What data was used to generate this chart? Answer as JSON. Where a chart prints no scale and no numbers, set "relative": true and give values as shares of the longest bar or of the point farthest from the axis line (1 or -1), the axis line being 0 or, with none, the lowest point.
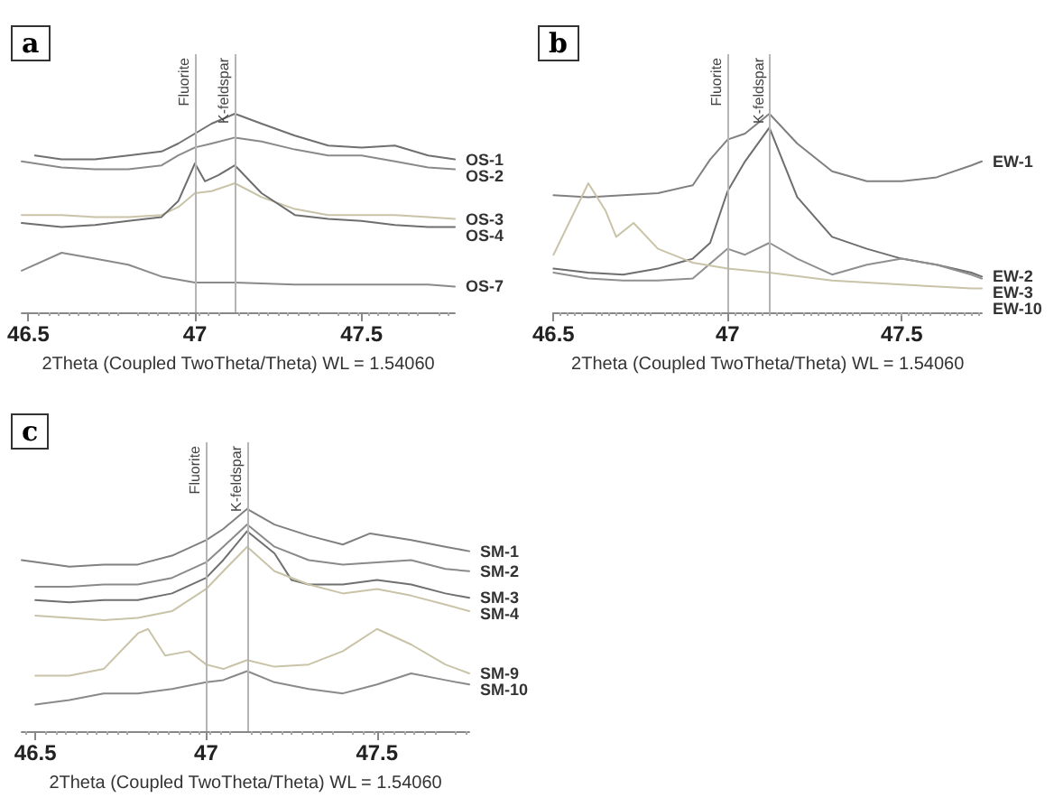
{
  "chart_data": [
    {
      "type": "line",
      "relative": true,
      "xlabel": "2Theta (Coupled TwoTheta/Theta) WL = 1.54060",
      "annotations": [
        "a"
      ],
      "xlim": [
        46.48,
        47.78
      ],
      "xticks": [
        46.5,
        47,
        47.5
      ],
      "legend": false,
      "grid": false,
      "marker": "none",
      "ref_lines": [
        {
          "axis": "x",
          "value": 47.0,
          "label": "Fluorite",
          "color": "#b5b5b5"
        },
        {
          "axis": "x",
          "value": 47.12,
          "label": "K-feldspar",
          "color": "#b5b5b5"
        }
      ],
      "series": [
        {
          "name": "OS-1",
          "color": "#707070",
          "x": [
            46.52,
            46.6,
            46.7,
            46.8,
            46.9,
            46.95,
            47.0,
            47.05,
            47.12,
            47.2,
            47.3,
            47.4,
            47.5,
            47.6,
            47.7,
            47.78
          ],
          "values": [
            0.79,
            0.77,
            0.77,
            0.79,
            0.81,
            0.85,
            0.9,
            0.95,
            1,
            0.95,
            0.89,
            0.84,
            0.83,
            0.84,
            0.79,
            0.77
          ]
        },
        {
          "name": "OS-2",
          "color": "#8a8a8a",
          "x": [
            46.48,
            46.6,
            46.7,
            46.8,
            46.9,
            46.95,
            47.0,
            47.05,
            47.12,
            47.2,
            47.3,
            47.4,
            47.5,
            47.6,
            47.7,
            47.78
          ],
          "values": [
            0.76,
            0.73,
            0.72,
            0.72,
            0.74,
            0.79,
            0.83,
            0.85,
            0.88,
            0.86,
            0.82,
            0.79,
            0.79,
            0.76,
            0.73,
            0.72
          ]
        },
        {
          "name": "OS-3",
          "color": "#c9c3a8",
          "x": [
            46.48,
            46.6,
            46.7,
            46.8,
            46.9,
            46.95,
            47.0,
            47.05,
            47.12,
            47.2,
            47.3,
            47.4,
            47.5,
            47.6,
            47.7,
            47.78
          ],
          "values": [
            0.49,
            0.49,
            0.48,
            0.48,
            0.49,
            0.53,
            0.6,
            0.61,
            0.65,
            0.58,
            0.52,
            0.49,
            0.49,
            0.49,
            0.48,
            0.47
          ]
        },
        {
          "name": "OS-4",
          "color": "#6e6e6e",
          "x": [
            46.48,
            46.6,
            46.7,
            46.8,
            46.9,
            46.95,
            47.0,
            47.03,
            47.07,
            47.12,
            47.2,
            47.3,
            47.4,
            47.5,
            47.6,
            47.7,
            47.78
          ],
          "values": [
            0.45,
            0.43,
            0.44,
            0.46,
            0.48,
            0.56,
            0.75,
            0.66,
            0.69,
            0.74,
            0.6,
            0.49,
            0.47,
            0.46,
            0.44,
            0.43,
            0.43
          ]
        },
        {
          "name": "OS-7",
          "color": "#8a8a8a",
          "x": [
            46.48,
            46.6,
            46.7,
            46.8,
            46.9,
            47.0,
            47.12,
            47.3,
            47.5,
            47.7,
            47.78
          ],
          "values": [
            0.21,
            0.3,
            0.27,
            0.24,
            0.18,
            0.15,
            0.15,
            0.14,
            0.14,
            0.14,
            0.13
          ]
        }
      ]
    },
    {
      "type": "line",
      "relative": true,
      "xlabel": "2Theta (Coupled TwoTheta/Theta) WL = 1.54060",
      "annotations": [
        "b"
      ],
      "xlim": [
        46.5,
        47.73
      ],
      "xticks": [
        46.5,
        47,
        47.5
      ],
      "legend": false,
      "grid": false,
      "marker": "none",
      "ref_lines": [
        {
          "axis": "x",
          "value": 47.0,
          "label": "Fluorite",
          "color": "#b5b5b5"
        },
        {
          "axis": "x",
          "value": 47.12,
          "label": "K-feldspar",
          "color": "#b5b5b5"
        }
      ],
      "series": [
        {
          "name": "EW-1",
          "color": "#808080",
          "x": [
            46.5,
            46.6,
            46.7,
            46.8,
            46.9,
            46.95,
            47.0,
            47.05,
            47.12,
            47.2,
            47.3,
            47.4,
            47.5,
            47.6,
            47.7,
            47.73
          ],
          "values": [
            0.59,
            0.58,
            0.59,
            0.6,
            0.64,
            0.77,
            0.87,
            0.9,
            1,
            0.85,
            0.71,
            0.66,
            0.66,
            0.68,
            0.74,
            0.76
          ]
        },
        {
          "name": "EW-2",
          "color": "#6e6e6e",
          "x": [
            46.5,
            46.6,
            46.7,
            46.8,
            46.9,
            46.95,
            47.0,
            47.05,
            47.12,
            47.2,
            47.3,
            47.4,
            47.5,
            47.6,
            47.7,
            47.73
          ],
          "values": [
            0.22,
            0.2,
            0.19,
            0.22,
            0.27,
            0.35,
            0.61,
            0.76,
            0.93,
            0.58,
            0.38,
            0.32,
            0.27,
            0.24,
            0.2,
            0.18
          ]
        },
        {
          "name": "EW-3",
          "color": "#8f8f8f",
          "x": [
            46.5,
            46.6,
            46.7,
            46.8,
            46.9,
            47.0,
            47.05,
            47.12,
            47.2,
            47.3,
            47.4,
            47.5,
            47.6,
            47.7,
            47.73
          ],
          "values": [
            0.2,
            0.17,
            0.16,
            0.16,
            0.17,
            0.32,
            0.29,
            0.35,
            0.27,
            0.19,
            0.24,
            0.27,
            0.24,
            0.19,
            0.17
          ]
        },
        {
          "name": "EW-10",
          "color": "#c9c3a8",
          "x": [
            46.5,
            46.6,
            46.65,
            46.68,
            46.73,
            46.8,
            46.9,
            47.0,
            47.12,
            47.3,
            47.5,
            47.7,
            47.73
          ],
          "values": [
            0.29,
            0.65,
            0.51,
            0.38,
            0.45,
            0.32,
            0.25,
            0.22,
            0.2,
            0.16,
            0.14,
            0.12,
            0.12
          ]
        }
      ]
    },
    {
      "type": "line",
      "relative": true,
      "xlabel": "2Theta (Coupled TwoTheta/Theta) WL = 1.54060",
      "annotations": [
        "c"
      ],
      "xlim": [
        46.46,
        47.77
      ],
      "xticks": [
        46.5,
        47,
        47.5
      ],
      "legend": false,
      "grid": false,
      "marker": "none",
      "ref_lines": [
        {
          "axis": "x",
          "value": 47.0,
          "label": "Fluorite",
          "color": "#b5b5b5"
        },
        {
          "axis": "x",
          "value": 47.12,
          "label": "K-feldspar",
          "color": "#b5b5b5"
        }
      ],
      "series": [
        {
          "name": "SM-1",
          "color": "#808080",
          "x": [
            46.46,
            46.6,
            46.7,
            46.8,
            46.9,
            47.0,
            47.05,
            47.12,
            47.2,
            47.3,
            47.4,
            47.48,
            47.6,
            47.7,
            47.77
          ],
          "values": [
            0.77,
            0.74,
            0.75,
            0.75,
            0.79,
            0.86,
            0.91,
            1,
            0.93,
            0.88,
            0.84,
            0.89,
            0.86,
            0.83,
            0.81
          ]
        },
        {
          "name": "SM-2",
          "color": "#8a8a8a",
          "x": [
            46.5,
            46.6,
            46.7,
            46.8,
            46.9,
            47.0,
            47.05,
            47.12,
            47.2,
            47.3,
            47.4,
            47.5,
            47.6,
            47.7,
            47.77
          ],
          "values": [
            0.65,
            0.65,
            0.66,
            0.66,
            0.69,
            0.76,
            0.83,
            0.93,
            0.83,
            0.77,
            0.75,
            0.76,
            0.77,
            0.73,
            0.72
          ]
        },
        {
          "name": "SM-3",
          "color": "#707070",
          "x": [
            46.5,
            46.6,
            46.7,
            46.8,
            46.9,
            47.0,
            47.05,
            47.12,
            47.2,
            47.25,
            47.3,
            47.4,
            47.5,
            47.6,
            47.7,
            47.77
          ],
          "values": [
            0.59,
            0.58,
            0.59,
            0.59,
            0.62,
            0.69,
            0.77,
            0.9,
            0.8,
            0.68,
            0.66,
            0.66,
            0.68,
            0.66,
            0.62,
            0.6
          ]
        },
        {
          "name": "SM-4",
          "color": "#c9c3a8",
          "x": [
            46.5,
            46.6,
            46.7,
            46.8,
            46.9,
            47.0,
            47.05,
            47.12,
            47.2,
            47.3,
            47.4,
            47.5,
            47.6,
            47.7,
            47.77
          ],
          "values": [
            0.52,
            0.51,
            0.5,
            0.51,
            0.54,
            0.64,
            0.72,
            0.83,
            0.72,
            0.66,
            0.62,
            0.64,
            0.61,
            0.57,
            0.54
          ]
        },
        {
          "name": "SM-9",
          "color": "#c9c3a8",
          "x": [
            46.5,
            46.6,
            46.7,
            46.8,
            46.83,
            46.88,
            46.95,
            47.0,
            47.05,
            47.12,
            47.2,
            47.3,
            47.4,
            47.5,
            47.6,
            47.7,
            47.77
          ],
          "values": [
            0.25,
            0.25,
            0.28,
            0.44,
            0.46,
            0.34,
            0.36,
            0.3,
            0.28,
            0.32,
            0.29,
            0.3,
            0.36,
            0.46,
            0.39,
            0.3,
            0.26
          ]
        },
        {
          "name": "SM-10",
          "color": "#8a8a8a",
          "x": [
            46.5,
            46.6,
            46.7,
            46.8,
            46.9,
            47.0,
            47.05,
            47.12,
            47.2,
            47.3,
            47.4,
            47.5,
            47.6,
            47.7,
            47.77
          ],
          "values": [
            0.12,
            0.14,
            0.17,
            0.17,
            0.19,
            0.22,
            0.23,
            0.27,
            0.22,
            0.19,
            0.17,
            0.21,
            0.26,
            0.23,
            0.21
          ]
        }
      ]
    }
  ]
}
